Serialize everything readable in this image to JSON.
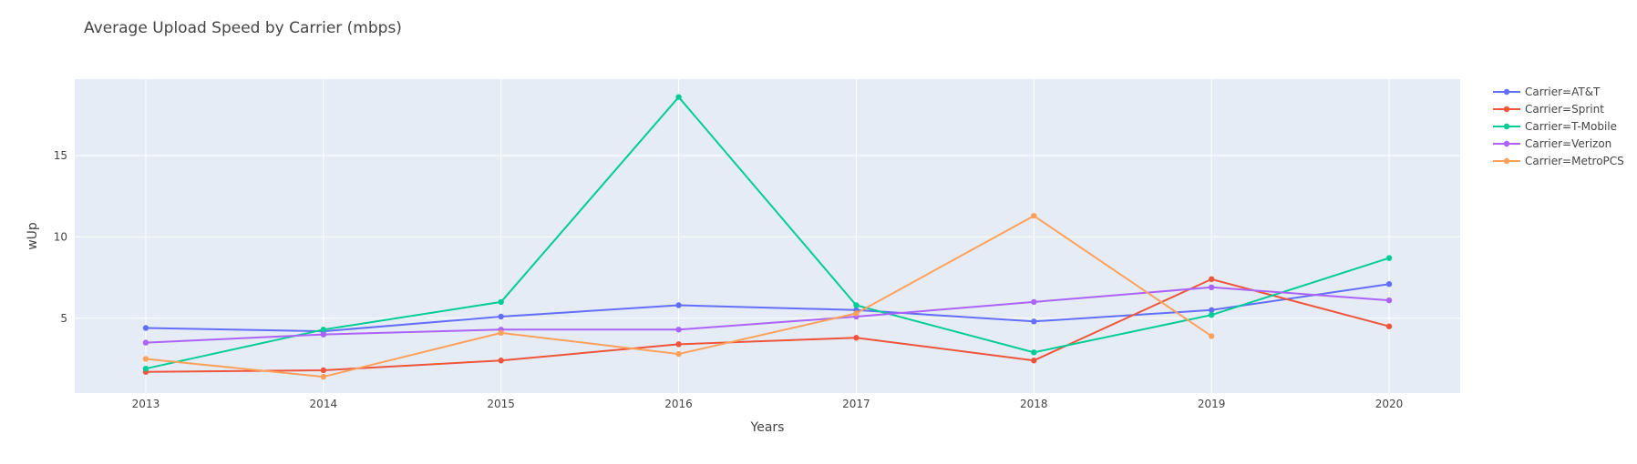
{
  "chart_data": {
    "type": "line",
    "title": "Average Upload Speed by Carrier (mbps)",
    "xlabel": "Years",
    "ylabel": "wUp",
    "x": [
      2013,
      2014,
      2015,
      2016,
      2017,
      2018,
      2019,
      2020
    ],
    "xlim": [
      2012.6,
      2020.4
    ],
    "ylim": [
      0.4,
      19.7
    ],
    "yticks": [
      5,
      10,
      15
    ],
    "grid": true,
    "legend_position": "top-right",
    "series": [
      {
        "name": "Carrier=AT&T",
        "color": "#636efa",
        "values": [
          4.4,
          4.2,
          5.1,
          5.8,
          5.5,
          4.8,
          5.5,
          7.1
        ]
      },
      {
        "name": "Carrier=Sprint",
        "color": "#ef553b",
        "values": [
          1.7,
          1.8,
          2.4,
          3.4,
          3.8,
          2.4,
          7.4,
          4.5
        ]
      },
      {
        "name": "Carrier=T-Mobile",
        "color": "#00cc96",
        "values": [
          1.9,
          4.3,
          6.0,
          18.6,
          5.8,
          2.9,
          5.2,
          8.7
        ]
      },
      {
        "name": "Carrier=Verizon",
        "color": "#ab63fa",
        "values": [
          3.5,
          4.0,
          4.3,
          4.3,
          5.1,
          6.0,
          6.9,
          6.1
        ]
      },
      {
        "name": "Carrier=MetroPCS",
        "color": "#ffa15a",
        "values": [
          2.5,
          1.4,
          4.1,
          2.8,
          5.3,
          11.3,
          3.9,
          null
        ]
      }
    ]
  }
}
